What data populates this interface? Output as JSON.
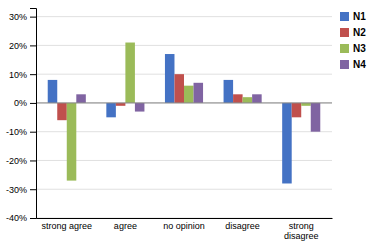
{
  "chart_data": {
    "type": "bar",
    "categories": [
      "strong agree",
      "agree",
      "no opinion",
      "disagree",
      "strong\ndisagree"
    ],
    "series": [
      {
        "name": "N1",
        "color": "#4472C4",
        "values": [
          8,
          -5,
          17,
          8,
          -28
        ]
      },
      {
        "name": "N2",
        "color": "#C0504D",
        "values": [
          -6,
          -1,
          10,
          3,
          -5
        ]
      },
      {
        "name": "N3",
        "color": "#9BBB59",
        "values": [
          -27,
          21,
          6,
          2,
          -1
        ]
      },
      {
        "name": "N4",
        "color": "#8064A2",
        "values": [
          3,
          -3,
          7,
          3,
          -10
        ]
      }
    ],
    "ylim": [
      -40,
      33
    ],
    "yticks": [
      {
        "value": -40,
        "label": "-40%"
      },
      {
        "value": -30,
        "label": "-30%"
      },
      {
        "value": -20,
        "label": "-20%"
      },
      {
        "value": -10,
        "label": "-10%"
      },
      {
        "value": 0,
        "label": "0%"
      },
      {
        "value": 10,
        "label": "10%"
      },
      {
        "value": 20,
        "label": "20%"
      },
      {
        "value": 30,
        "label": "30%"
      }
    ],
    "grid": true,
    "legend": "right"
  }
}
